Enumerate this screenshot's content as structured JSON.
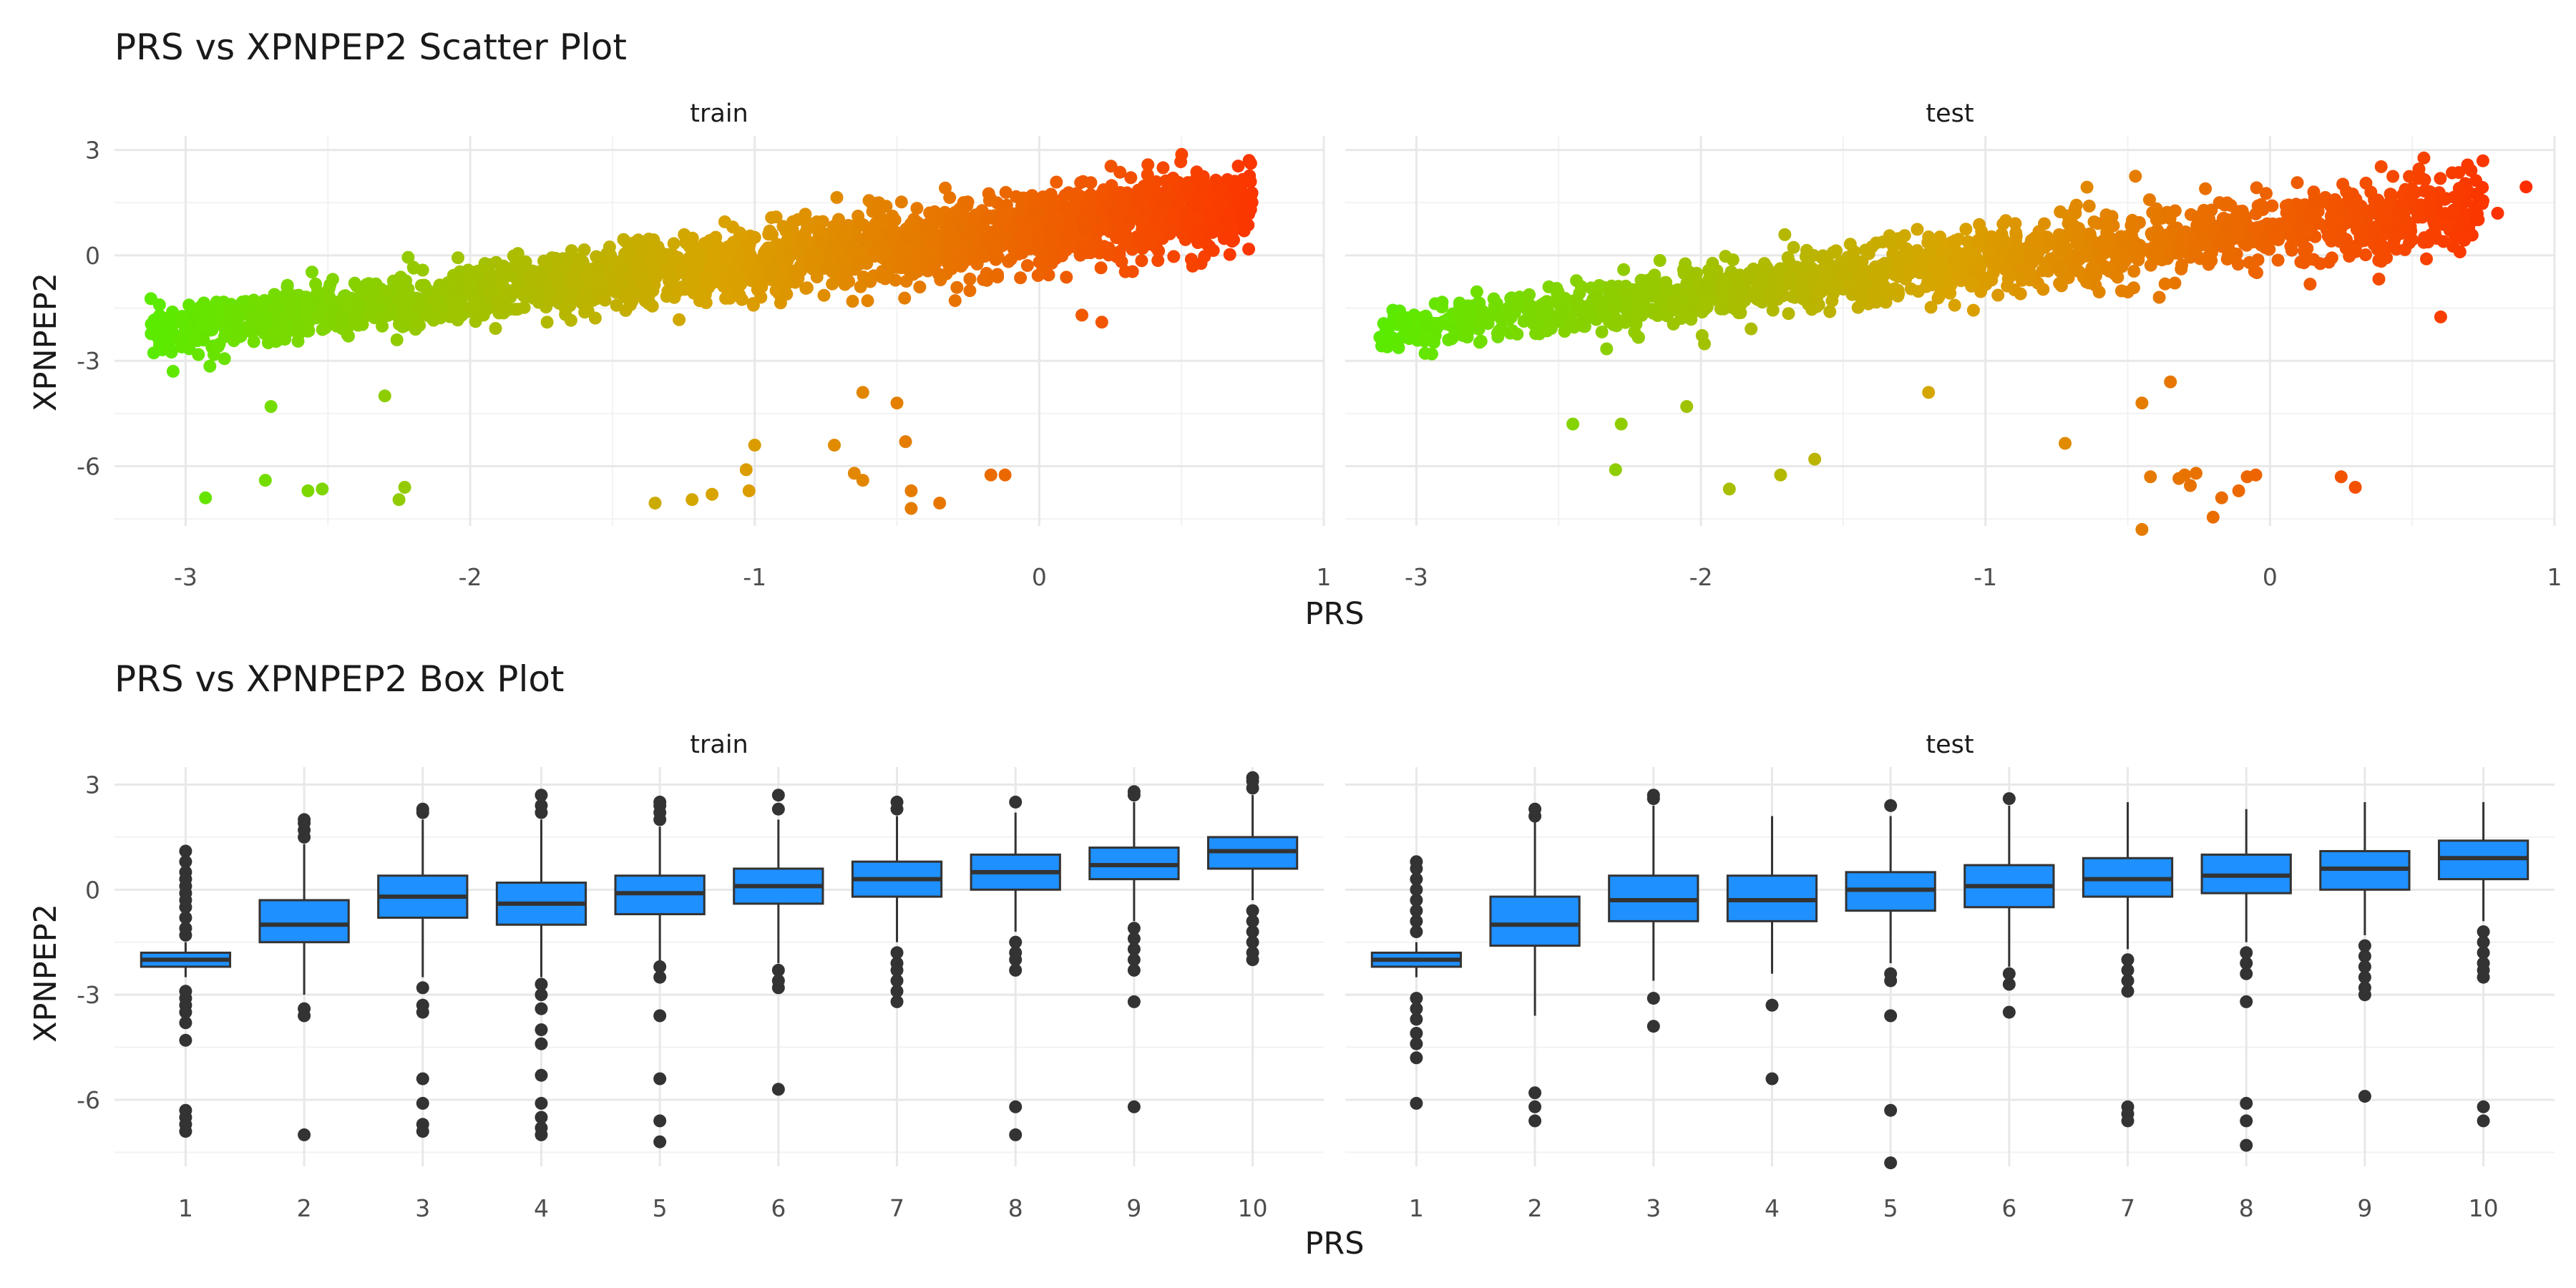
{
  "chart_data": [
    {
      "type": "scatter",
      "title": "PRS vs XPNPEP2 Scatter Plot",
      "xlabel": "PRS",
      "ylabel": "XPNPEP2",
      "x_ticks": [
        "-3",
        "-2",
        "-1",
        "0",
        "1"
      ],
      "y_ticks": [
        "3",
        "0",
        "-3",
        "-6"
      ],
      "xlim": [
        -3.25,
        1.0
      ],
      "ylim": [
        -7.7,
        3.4
      ],
      "color_scale": {
        "low": "#55EE00",
        "mid": "#D9A300",
        "high": "#FF2A00"
      },
      "grid": true,
      "legend": "none",
      "panels": [
        {
          "name": "train",
          "cloud_points": 2400,
          "outliers": [
            [
              -2.93,
              -6.9
            ],
            [
              -2.72,
              -6.4
            ],
            [
              -2.57,
              -6.7
            ],
            [
              -2.52,
              -6.65
            ],
            [
              -2.25,
              -6.95
            ],
            [
              -2.23,
              -6.6
            ],
            [
              -2.7,
              -4.3
            ],
            [
              -2.3,
              -4.0
            ],
            [
              -1.35,
              -7.05
            ],
            [
              -1.22,
              -6.95
            ],
            [
              -1.15,
              -6.8
            ],
            [
              -1.03,
              -6.1
            ],
            [
              -1.02,
              -6.7
            ],
            [
              -1.0,
              -5.4
            ],
            [
              -0.72,
              -5.4
            ],
            [
              -0.65,
              -6.2
            ],
            [
              -0.62,
              -6.4
            ],
            [
              -0.47,
              -5.3
            ],
            [
              -0.45,
              -6.7
            ],
            [
              -0.45,
              -7.2
            ],
            [
              -0.35,
              -7.05
            ],
            [
              -0.17,
              -6.25
            ],
            [
              -0.12,
              -6.25
            ],
            [
              -0.62,
              -3.9
            ],
            [
              -0.5,
              -4.2
            ],
            [
              0.42,
              1.2
            ],
            [
              0.72,
              0.7
            ],
            [
              0.15,
              -1.7
            ],
            [
              0.22,
              -1.9
            ],
            [
              0.65,
              0.9
            ]
          ]
        },
        {
          "name": "test",
          "cloud_points": 1600,
          "outliers": [
            [
              -3.0,
              -1.8
            ],
            [
              -2.45,
              -4.8
            ],
            [
              -2.28,
              -4.8
            ],
            [
              -2.3,
              -6.1
            ],
            [
              -2.05,
              -4.3
            ],
            [
              -1.9,
              -6.65
            ],
            [
              -1.72,
              -6.25
            ],
            [
              -1.6,
              -5.8
            ],
            [
              -1.2,
              -3.9
            ],
            [
              -0.72,
              -5.35
            ],
            [
              -0.45,
              -7.8
            ],
            [
              -0.42,
              -6.3
            ],
            [
              -0.32,
              -6.35
            ],
            [
              -0.3,
              -6.25
            ],
            [
              -0.28,
              -6.55
            ],
            [
              -0.26,
              -6.2
            ],
            [
              -0.17,
              -6.9
            ],
            [
              -0.2,
              -7.45
            ],
            [
              -0.11,
              -6.7
            ],
            [
              -0.08,
              -6.3
            ],
            [
              -0.05,
              -6.25
            ],
            [
              0.25,
              -6.3
            ],
            [
              0.3,
              -6.6
            ],
            [
              0.6,
              -1.75
            ],
            [
              0.9,
              1.95
            ],
            [
              0.8,
              1.2
            ],
            [
              0.72,
              1.4
            ],
            [
              -0.45,
              -4.2
            ],
            [
              -0.35,
              -3.6
            ]
          ]
        }
      ]
    },
    {
      "type": "box",
      "title": "PRS vs XPNPEP2 Box Plot",
      "xlabel": "PRS",
      "ylabel": "XPNPEP2",
      "categories": [
        "1",
        "2",
        "3",
        "4",
        "5",
        "6",
        "7",
        "8",
        "9",
        "10"
      ],
      "y_ticks": [
        "3",
        "0",
        "-3",
        "-6"
      ],
      "ylim": [
        -7.9,
        3.5
      ],
      "box_color": "#1E90FF",
      "grid": true,
      "legend": "none",
      "panels": [
        {
          "name": "train",
          "boxes": [
            {
              "q1": -2.2,
              "median": -2.0,
              "q3": -1.8,
              "lo": -2.5,
              "hi": -1.5,
              "out": [
                1.1,
                0.8,
                0.5,
                0.3,
                0.1,
                -0.1,
                -0.3,
                -0.5,
                -0.8,
                -1.1,
                -1.3,
                -2.9,
                -3.1,
                -3.3,
                -3.5,
                -3.8,
                -4.3,
                -6.3,
                -6.5,
                -6.7,
                -6.9
              ]
            },
            {
              "q1": -1.5,
              "median": -1.0,
              "q3": -0.3,
              "lo": -3.0,
              "hi": 1.3,
              "out": [
                1.5,
                1.7,
                1.9,
                2.0,
                -3.4,
                -3.6,
                -7.0
              ]
            },
            {
              "q1": -0.8,
              "median": -0.2,
              "q3": 0.4,
              "lo": -2.5,
              "hi": 2.0,
              "out": [
                2.2,
                2.3,
                -2.8,
                -3.3,
                -3.5,
                -5.4,
                -6.1,
                -6.7,
                -6.9
              ]
            },
            {
              "q1": -1.0,
              "median": -0.4,
              "q3": 0.2,
              "lo": -2.5,
              "hi": 2.0,
              "out": [
                2.2,
                2.4,
                2.7,
                -2.7,
                -3.0,
                -3.4,
                -4.0,
                -4.4,
                -5.3,
                -6.1,
                -6.5,
                -6.8,
                -7.0
              ]
            },
            {
              "q1": -0.7,
              "median": -0.1,
              "q3": 0.4,
              "lo": -2.1,
              "hi": 1.8,
              "out": [
                2.0,
                2.2,
                2.4,
                2.5,
                -2.2,
                -2.5,
                -3.6,
                -5.4,
                -6.6,
                -7.2
              ]
            },
            {
              "q1": -0.4,
              "median": 0.1,
              "q3": 0.6,
              "lo": -2.1,
              "hi": 2.0,
              "out": [
                2.3,
                2.7,
                -2.3,
                -2.6,
                -2.8,
                -5.7
              ]
            },
            {
              "q1": -0.2,
              "median": 0.3,
              "q3": 0.8,
              "lo": -1.5,
              "hi": 2.1,
              "out": [
                2.3,
                2.5,
                -1.8,
                -2.1,
                -2.3,
                -2.6,
                -2.9,
                -3.2
              ]
            },
            {
              "q1": 0.0,
              "median": 0.5,
              "q3": 1.0,
              "lo": -1.2,
              "hi": 2.2,
              "out": [
                2.5,
                -1.5,
                -1.8,
                -2.0,
                -2.3,
                -6.2,
                -7.0
              ]
            },
            {
              "q1": 0.3,
              "median": 0.7,
              "q3": 1.2,
              "lo": -0.9,
              "hi": 2.5,
              "out": [
                2.7,
                2.8,
                -1.1,
                -1.4,
                -1.7,
                -2.0,
                -2.3,
                -3.2,
                -6.2
              ]
            },
            {
              "q1": 0.6,
              "median": 1.1,
              "q3": 1.5,
              "lo": -0.3,
              "hi": 2.7,
              "out": [
                2.9,
                3.1,
                3.2,
                -0.6,
                -0.9,
                -1.2,
                -1.5,
                -1.8,
                -2.0
              ]
            }
          ]
        },
        {
          "name": "test",
          "boxes": [
            {
              "q1": -2.2,
              "median": -2.0,
              "q3": -1.8,
              "lo": -2.5,
              "hi": -1.5,
              "out": [
                0.8,
                0.6,
                0.3,
                0.0,
                -0.3,
                -0.6,
                -0.9,
                -1.2,
                -3.1,
                -3.4,
                -3.7,
                -4.1,
                -4.4,
                -4.8,
                -6.1
              ]
            },
            {
              "q1": -1.6,
              "median": -1.0,
              "q3": -0.2,
              "lo": -3.6,
              "hi": 2.0,
              "out": [
                2.1,
                2.3,
                -5.8,
                -6.2,
                -6.6
              ]
            },
            {
              "q1": -0.9,
              "median": -0.3,
              "q3": 0.4,
              "lo": -2.6,
              "hi": 2.4,
              "out": [
                2.6,
                2.7,
                -3.1,
                -3.9
              ]
            },
            {
              "q1": -0.9,
              "median": -0.3,
              "q3": 0.4,
              "lo": -2.4,
              "hi": 2.1,
              "out": [
                -3.3,
                -5.4
              ]
            },
            {
              "q1": -0.6,
              "median": 0.0,
              "q3": 0.5,
              "lo": -2.1,
              "hi": 2.1,
              "out": [
                2.4,
                -2.4,
                -2.6,
                -3.6,
                -6.3,
                -7.8
              ]
            },
            {
              "q1": -0.5,
              "median": 0.1,
              "q3": 0.7,
              "lo": -2.2,
              "hi": 2.4,
              "out": [
                2.6,
                -2.4,
                -2.7,
                -3.5
              ]
            },
            {
              "q1": -0.2,
              "median": 0.3,
              "q3": 0.9,
              "lo": -1.7,
              "hi": 2.5,
              "out": [
                -2.0,
                -2.3,
                -2.6,
                -2.9,
                -6.2,
                -6.4,
                -6.6
              ]
            },
            {
              "q1": -0.1,
              "median": 0.4,
              "q3": 1.0,
              "lo": -1.5,
              "hi": 2.3,
              "out": [
                -1.8,
                -2.1,
                -2.4,
                -3.2,
                -6.1,
                -6.6,
                -7.3
              ]
            },
            {
              "q1": 0.0,
              "median": 0.6,
              "q3": 1.1,
              "lo": -1.3,
              "hi": 2.5,
              "out": [
                -1.6,
                -1.9,
                -2.2,
                -2.5,
                -2.8,
                -3.0,
                -5.9
              ]
            },
            {
              "q1": 0.3,
              "median": 0.9,
              "q3": 1.4,
              "lo": -0.9,
              "hi": 2.5,
              "out": [
                -1.2,
                -1.5,
                -1.8,
                -2.1,
                -2.3,
                -2.5,
                -6.2,
                -6.6
              ]
            }
          ]
        }
      ]
    }
  ]
}
